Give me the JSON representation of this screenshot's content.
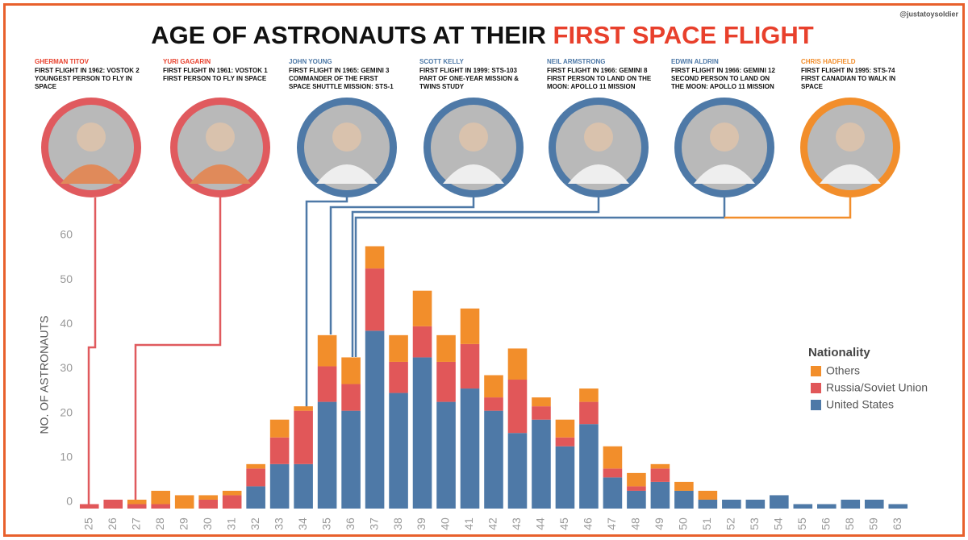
{
  "credit": "@justatoysoldier",
  "astronauts": [
    {
      "name": "GHERMAN TITOV",
      "lines": [
        "FIRST FLIGHT IN 1962: VOSTOK 2",
        "YOUNGEST PERSON TO FLY IN",
        "SPACE"
      ]
    },
    {
      "name": "YURI GAGARIN",
      "lines": [
        "FIRST FLIGHT IN 1961: VOSTOK 1",
        "FIRST PERSON TO FLY IN SPACE"
      ]
    },
    {
      "name": "JOHN YOUNG",
      "lines": [
        "FIRST FLIGHT IN 1965: GEMINI 3",
        "COMMANDER OF THE FIRST",
        "SPACE SHUTTLE MISSION: STS-1"
      ]
    },
    {
      "name": "SCOTT KELLY",
      "lines": [
        "FIRST FLIGHT IN 1999: STS-103",
        "PART OF ONE-YEAR MISSION &",
        "TWINS STUDY"
      ]
    },
    {
      "name": "NEIL ARMSTRONG",
      "lines": [
        "FIRST FLIGHT IN 1966: GEMINI 8",
        "FIRST PERSON TO LAND ON THE",
        "MOON: APOLLO 11 MISSION"
      ]
    },
    {
      "name": "EDWIN ALDRIN",
      "lines": [
        "FIRST FLIGHT IN 1966: GEMINI 12",
        "SECOND PERSON TO LAND ON",
        "THE MOON: APOLLO 11 MISSION"
      ]
    },
    {
      "name": "CHRIS HADFIELD",
      "lines": [
        "FIRST FLIGHT IN 1995: STS-74",
        "FIRST CANADIAN TO WALK IN",
        "SPACE"
      ]
    }
  ],
  "chart_data": {
    "type": "stacked_bar",
    "title": [
      "AGE OF ASTRONAUTS AT THEIR ",
      "FIRST SPACE FLIGHT"
    ],
    "y_label": "NO. OF ASTRONAUTS",
    "legend_title": "Nationality",
    "categories": [
      "25",
      "26",
      "27",
      "28",
      "29",
      "30",
      "31",
      "32",
      "33",
      "34",
      "35",
      "36",
      "37",
      "38",
      "39",
      "40",
      "41",
      "42",
      "43",
      "44",
      "45",
      "46",
      "47",
      "48",
      "49",
      "50",
      "51",
      "52",
      "53",
      "54",
      "55",
      "56",
      "58",
      "59",
      "63"
    ],
    "series": [
      {
        "name": "United States",
        "color": "#4e79a7",
        "values": [
          0,
          0,
          0,
          0,
          0,
          0,
          0,
          5,
          10,
          10,
          24,
          22,
          40,
          26,
          34,
          24,
          27,
          22,
          17,
          20,
          14,
          19,
          7,
          4,
          6,
          4,
          2,
          2,
          2,
          3,
          1,
          1,
          2,
          2,
          1
        ]
      },
      {
        "name": "Russia/Soviet Union",
        "color": "#e15759",
        "values": [
          1,
          2,
          1,
          1,
          0,
          2,
          3,
          4,
          6,
          12,
          8,
          6,
          14,
          7,
          7,
          9,
          10,
          3,
          12,
          3,
          2,
          5,
          2,
          1,
          3,
          0,
          0,
          0,
          0,
          0,
          0,
          0,
          0,
          0,
          0
        ]
      },
      {
        "name": "Others",
        "color": "#f28e2b",
        "values": [
          0,
          0,
          1,
          3,
          3,
          1,
          1,
          1,
          4,
          1,
          7,
          6,
          5,
          6,
          8,
          6,
          8,
          5,
          7,
          2,
          4,
          3,
          5,
          3,
          1,
          2,
          2,
          0,
          0,
          0,
          0,
          0,
          0,
          0,
          0
        ]
      }
    ],
    "ylim": [
      0,
      60
    ],
    "yticks": [
      0,
      10,
      20,
      30,
      40,
      50,
      60
    ],
    "grid": false
  }
}
